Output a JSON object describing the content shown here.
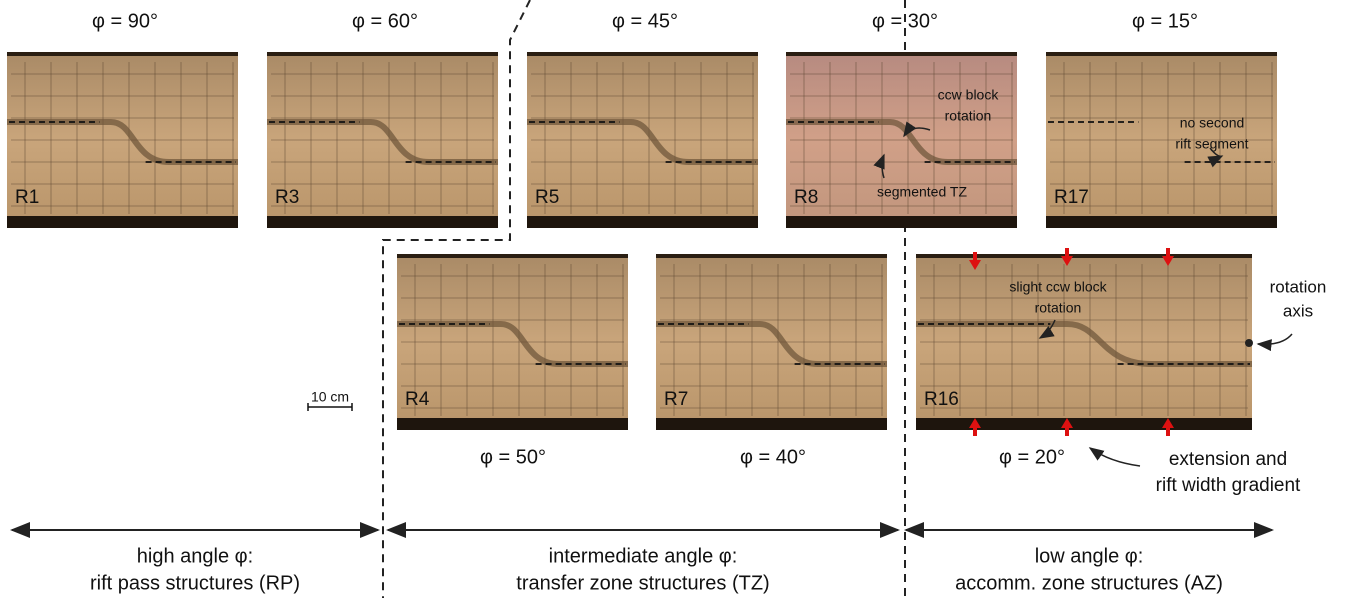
{
  "panels": [
    {
      "label": "R1",
      "angle": "φ = 90°"
    },
    {
      "label": "R3",
      "angle": "φ = 60°"
    },
    {
      "label": "R5",
      "angle": "φ = 45°"
    },
    {
      "label": "R8",
      "angle": "φ = 30°"
    },
    {
      "label": "R17",
      "angle": "φ = 15°"
    },
    {
      "label": "R4",
      "angle": "φ = 50°"
    },
    {
      "label": "R7",
      "angle": "φ = 40°"
    },
    {
      "label": "R16",
      "angle": "φ = 20°"
    }
  ],
  "annotations": [
    {
      "lines": [
        "ccw block",
        "rotation"
      ]
    },
    {
      "lines": [
        "segmented TZ"
      ]
    },
    {
      "lines": [
        "no second",
        "rift segment"
      ]
    },
    {
      "lines": [
        "slight ccw block",
        "rotation"
      ]
    },
    {
      "lines": [
        "rotation",
        "axis"
      ]
    },
    {
      "lines": [
        "extension and",
        "rift width gradient"
      ]
    }
  ],
  "scale_bar": "10 cm",
  "groups": [
    {
      "lines": [
        "high angle φ:",
        "rift pass structures (RP)"
      ]
    },
    {
      "lines": [
        "intermediate angle φ:",
        "transfer zone structures (TZ)"
      ]
    },
    {
      "lines": [
        "low angle φ:",
        "accomm. zone structures (AZ)"
      ]
    }
  ]
}
